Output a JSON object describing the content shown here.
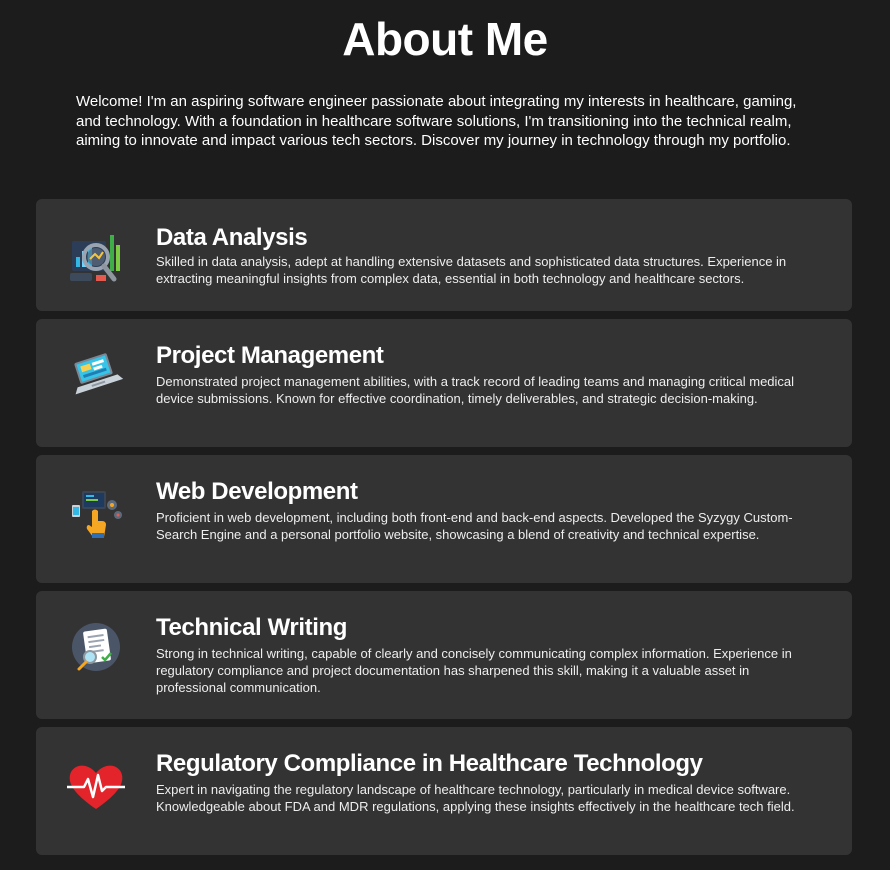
{
  "header": {
    "title": "About Me",
    "intro": "Welcome! I'm an aspiring software engineer passionate about integrating my interests in healthcare, gaming, and technology. With a foundation in healthcare software solutions, I'm transitioning into the technical realm, aiming to innovate and impact various tech sectors. Discover my journey in technology through my portfolio."
  },
  "cards": [
    {
      "title": "Data Analysis",
      "text": "Skilled in data analysis, adept at handling extensive datasets and sophisticated data structures. Experience in extracting meaningful insights from complex data, essential in both technology and healthcare sectors.",
      "icon": "data-analysis-icon"
    },
    {
      "title": "Project Management",
      "text": "Demonstrated project management abilities, with a track record of leading teams and managing critical medical device submissions. Known for effective coordination, timely deliverables, and strategic decision-making.",
      "icon": "laptop-icon"
    },
    {
      "title": "Web Development",
      "text": "Proficient in web development, including both front-end and back-end aspects. Developed the Syzygy Custom-Search Engine and a personal portfolio website, showcasing a blend of creativity and technical expertise.",
      "icon": "web-development-icon"
    },
    {
      "title": "Technical Writing",
      "text": "Strong in technical writing, capable of clearly and concisely communicating complex information. Experience in regulatory compliance and project documentation has sharpened this skill, making it a valuable asset in professional communication.",
      "icon": "document-icon"
    },
    {
      "title": "Regulatory Compliance in Healthcare Technology",
      "text": "Expert in navigating the regulatory landscape of healthcare technology, particularly in medical device software. Knowledgeable about FDA and MDR regulations, applying these insights effectively in the healthcare tech field.",
      "icon": "heartbeat-icon"
    }
  ]
}
